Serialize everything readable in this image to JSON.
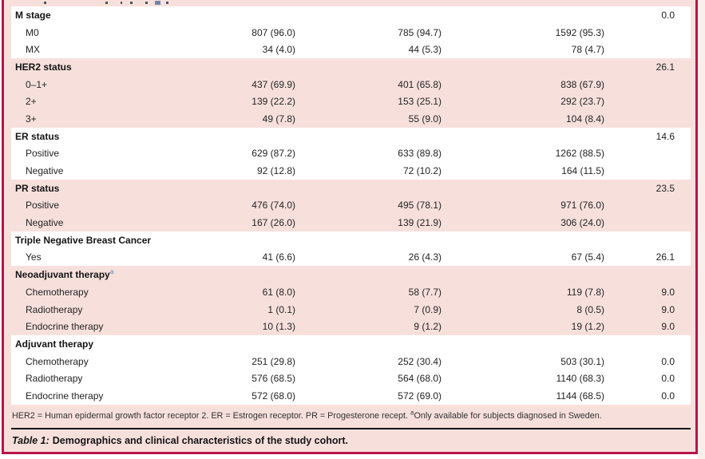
{
  "colors": {
    "accent_crimson": "#b9144b",
    "row_pink": "#f7e0dc",
    "marker_blue": "#7d9bc4"
  },
  "table": {
    "sections": [
      {
        "header": "M stage",
        "header_sup": "",
        "header_missing": "0.0",
        "shade": "white",
        "rows": [
          {
            "label": "M0",
            "v1": "807 (96.0)",
            "v2": "785 (94.7)",
            "v3": "1592 (95.3)",
            "missing": ""
          },
          {
            "label": "MX",
            "v1": "34 (4.0)",
            "v2": "44 (5.3)",
            "v3": "78 (4.7)",
            "missing": ""
          }
        ]
      },
      {
        "header": "HER2 status",
        "header_sup": "",
        "header_missing": "26.1",
        "shade": "pink",
        "rows": [
          {
            "label": "0–1+",
            "v1": "437 (69.9)",
            "v2": "401 (65.8)",
            "v3": "838 (67.9)",
            "missing": ""
          },
          {
            "label": "2+",
            "v1": "139 (22.2)",
            "v2": "153 (25.1)",
            "v3": "292 (23.7)",
            "missing": ""
          },
          {
            "label": "3+",
            "v1": "49 (7.8)",
            "v2": "55 (9.0)",
            "v3": "104 (8.4)",
            "missing": ""
          }
        ]
      },
      {
        "header": "ER status",
        "header_sup": "",
        "header_missing": "14.6",
        "shade": "white",
        "rows": [
          {
            "label": "Positive",
            "v1": "629 (87.2)",
            "v2": "633 (89.8)",
            "v3": "1262 (88.5)",
            "missing": ""
          },
          {
            "label": "Negative",
            "v1": "92 (12.8)",
            "v2": "72 (10.2)",
            "v3": "164 (11.5)",
            "missing": ""
          }
        ]
      },
      {
        "header": "PR status",
        "header_sup": "",
        "header_missing": "23.5",
        "shade": "pink",
        "rows": [
          {
            "label": "Positive",
            "v1": "476 (74.0)",
            "v2": "495 (78.1)",
            "v3": "971 (76.0)",
            "missing": ""
          },
          {
            "label": "Negative",
            "v1": "167 (26.0)",
            "v2": "139 (21.9)",
            "v3": "306 (24.0)",
            "missing": ""
          }
        ]
      },
      {
        "header": "Triple Negative Breast Cancer",
        "header_sup": "",
        "header_missing": "",
        "shade": "white",
        "rows": [
          {
            "label": "Yes",
            "v1": "41 (6.6)",
            "v2": "26 (4.3)",
            "v3": "67 (5.4)",
            "missing": "26.1"
          }
        ]
      },
      {
        "header": "Neoadjuvant therapy",
        "header_sup": "a",
        "header_missing": "",
        "shade": "pink",
        "rows": [
          {
            "label": "Chemotherapy",
            "v1": "61 (8.0)",
            "v2": "58 (7.7)",
            "v3": "119 (7.8)",
            "missing": "9.0"
          },
          {
            "label": "Radiotherapy",
            "v1": "1 (0.1)",
            "v2": "7 (0.9)",
            "v3": "8 (0.5)",
            "missing": "9.0"
          },
          {
            "label": "Endocrine therapy",
            "v1": "10 (1.3)",
            "v2": "9 (1.2)",
            "v3": "19 (1.2)",
            "missing": "9.0"
          }
        ]
      },
      {
        "header": "Adjuvant therapy",
        "header_sup": "",
        "header_missing": "",
        "shade": "white",
        "rows": [
          {
            "label": "Chemotherapy",
            "v1": "251 (29.8)",
            "v2": "252 (30.4)",
            "v3": "503 (30.1)",
            "missing": "0.0"
          },
          {
            "label": "Radiotherapy",
            "v1": "576 (68.5)",
            "v2": "564 (68.0)",
            "v3": "1140 (68.3)",
            "missing": "0.0"
          },
          {
            "label": "Endocrine therapy",
            "v1": "572 (68.0)",
            "v2": "572 (69.0)",
            "v3": "1144 (68.5)",
            "missing": "0.0"
          }
        ]
      }
    ]
  },
  "footnote": {
    "text_before_sup": "HER2 = Human epidermal growth factor receptor 2. ER = Estrogen receptor. PR = Progesterone recept. ",
    "sup": "a",
    "text_after_sup": "Only available for subjects diagnosed in Sweden."
  },
  "caption": {
    "label": "Table 1:",
    "text": "Demographics and clinical characteristics of the study cohort."
  }
}
